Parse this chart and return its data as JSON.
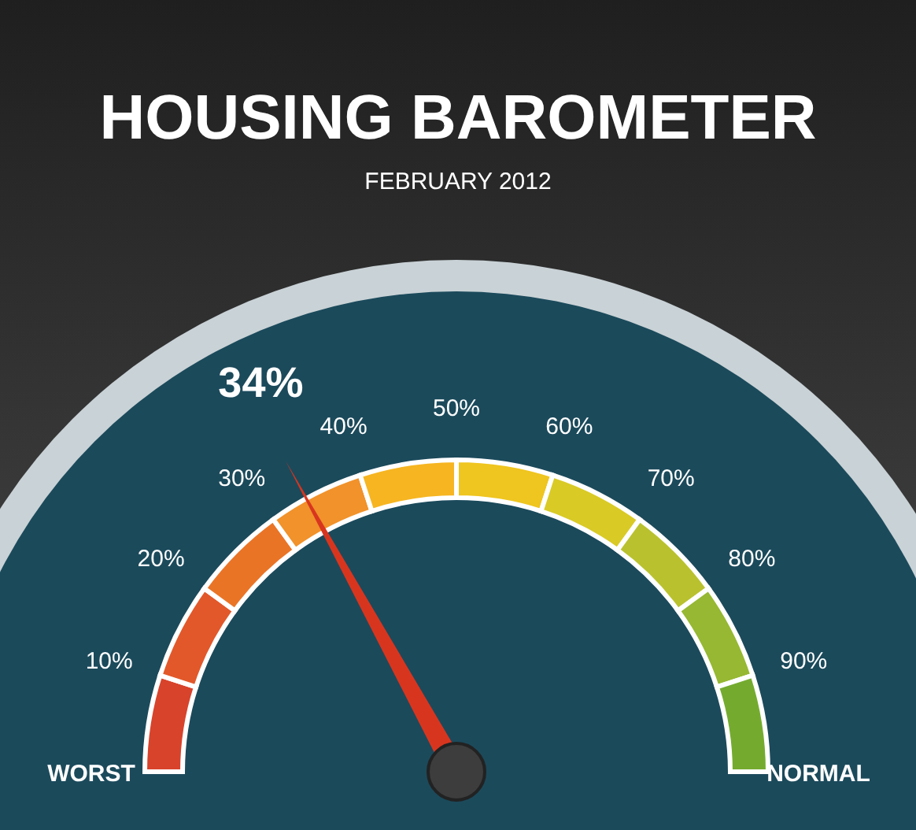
{
  "chart_data": {
    "type": "other",
    "title": "HOUSING BAROMETER",
    "subtitle": "FEBRUARY 2012",
    "values": [
      34
    ],
    "value_labels": [
      "34%"
    ],
    "color": "#d8351f",
    "annotations": [
      "WORST",
      "NORMAL",
      "10%",
      "20%",
      "30%",
      "40%",
      "50%",
      "60%",
      "70%",
      "80%",
      "90%"
    ]
  }
}
